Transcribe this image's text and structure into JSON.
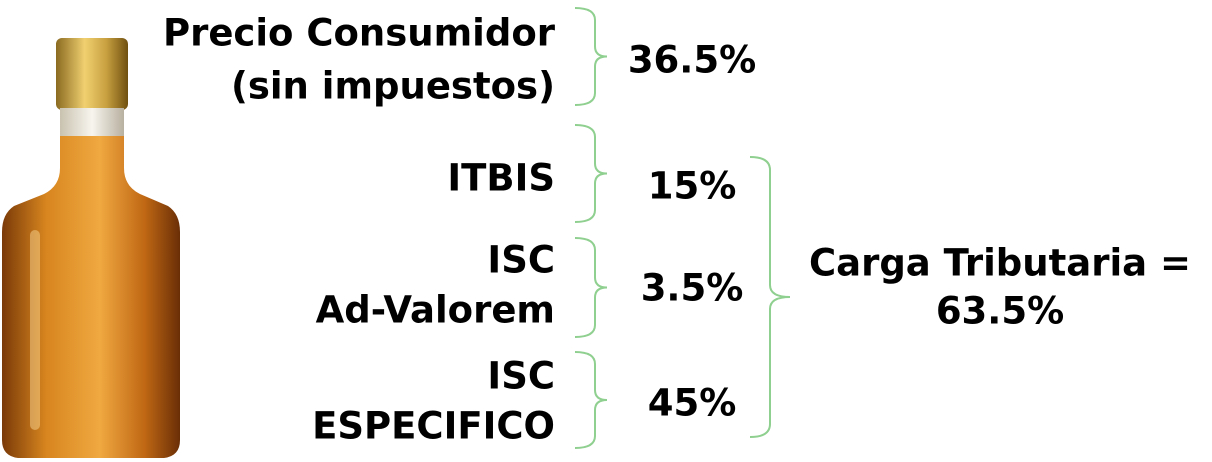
{
  "items": [
    {
      "label": [
        "Precio Consumidor",
        "(sin impuestos)"
      ],
      "value": "36.5%"
    },
    {
      "label": [
        "ITBIS"
      ],
      "value": "15%"
    },
    {
      "label": [
        "ISC",
        "Ad-Valorem"
      ],
      "value": "3.5%"
    },
    {
      "label": [
        "ISC",
        "ESPECIFICO"
      ],
      "value": "45%"
    }
  ],
  "total": {
    "label": "Carga Tributaria =",
    "value": "63.5%"
  }
}
